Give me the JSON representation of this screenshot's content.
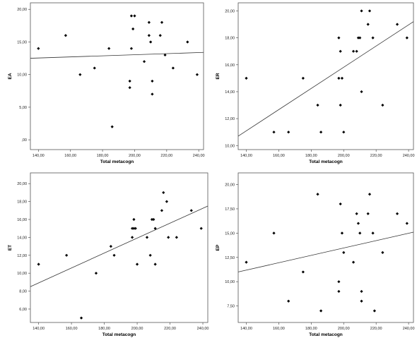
{
  "chart_data": [
    {
      "type": "scatter",
      "xlabel": "Total metacogn",
      "ylabel": "EA",
      "xlim": [
        135,
        243
      ],
      "ylim": [
        -1.5,
        21
      ],
      "xticks": [
        "140,00",
        "160,00",
        "180,00",
        "200,00",
        "220,00",
        "240,00"
      ],
      "xtick_values": [
        140,
        160,
        180,
        200,
        220,
        240
      ],
      "yticks": [
        ",00",
        "5,00",
        "10,00",
        "15,00",
        "20,00"
      ],
      "ytick_values": [
        0,
        5,
        10,
        15,
        20
      ],
      "grid": false,
      "fit_line": {
        "x": [
          135,
          243
        ],
        "y": [
          12.5,
          13.4
        ]
      },
      "points": [
        {
          "x": 140,
          "y": 14
        },
        {
          "x": 157,
          "y": 16
        },
        {
          "x": 166,
          "y": 10
        },
        {
          "x": 175,
          "y": 11
        },
        {
          "x": 184,
          "y": 14
        },
        {
          "x": 186,
          "y": 2
        },
        {
          "x": 197,
          "y": 9
        },
        {
          "x": 197,
          "y": 8
        },
        {
          "x": 198,
          "y": 14
        },
        {
          "x": 198,
          "y": 19
        },
        {
          "x": 199,
          "y": 17
        },
        {
          "x": 200,
          "y": 19
        },
        {
          "x": 206,
          "y": 12
        },
        {
          "x": 209,
          "y": 18
        },
        {
          "x": 209,
          "y": 16
        },
        {
          "x": 210,
          "y": 15
        },
        {
          "x": 211,
          "y": 9
        },
        {
          "x": 211,
          "y": 7
        },
        {
          "x": 216,
          "y": 16
        },
        {
          "x": 217,
          "y": 18
        },
        {
          "x": 219,
          "y": 13
        },
        {
          "x": 224,
          "y": 11
        },
        {
          "x": 233,
          "y": 15
        },
        {
          "x": 239,
          "y": 10
        }
      ]
    },
    {
      "type": "scatter",
      "xlabel": "Total metacogn",
      "ylabel": "ER",
      "xlim": [
        135,
        243
      ],
      "ylim": [
        9.7,
        20.6
      ],
      "xticks": [
        "140,00",
        "160,00",
        "180,00",
        "200,00",
        "220,00",
        "240,00"
      ],
      "xtick_values": [
        140,
        160,
        180,
        200,
        220,
        240
      ],
      "yticks": [
        "10,00",
        "12,00",
        "14,00",
        "16,00",
        "18,00",
        "20,00"
      ],
      "ytick_values": [
        10,
        12,
        14,
        16,
        18,
        20
      ],
      "grid": false,
      "fit_line": {
        "x": [
          135,
          243
        ],
        "y": [
          10.7,
          19.2
        ]
      },
      "points": [
        {
          "x": 140,
          "y": 15
        },
        {
          "x": 157,
          "y": 11
        },
        {
          "x": 166,
          "y": 11
        },
        {
          "x": 175,
          "y": 15
        },
        {
          "x": 184,
          "y": 13
        },
        {
          "x": 186,
          "y": 11
        },
        {
          "x": 197,
          "y": 18
        },
        {
          "x": 197,
          "y": 15
        },
        {
          "x": 198,
          "y": 17
        },
        {
          "x": 198,
          "y": 13
        },
        {
          "x": 199,
          "y": 15
        },
        {
          "x": 200,
          "y": 11
        },
        {
          "x": 206,
          "y": 17
        },
        {
          "x": 208,
          "y": 17
        },
        {
          "x": 209,
          "y": 18
        },
        {
          "x": 210,
          "y": 18
        },
        {
          "x": 211,
          "y": 20
        },
        {
          "x": 211,
          "y": 14
        },
        {
          "x": 215,
          "y": 19
        },
        {
          "x": 216,
          "y": 20
        },
        {
          "x": 218,
          "y": 18
        },
        {
          "x": 224,
          "y": 13
        },
        {
          "x": 233,
          "y": 19
        },
        {
          "x": 239,
          "y": 18
        }
      ]
    },
    {
      "type": "scatter",
      "xlabel": "Total metacogn",
      "ylabel": "ET",
      "xlim": [
        135,
        243
      ],
      "ylim": [
        4.5,
        21.2
      ],
      "xticks": [
        "140,00",
        "160,00",
        "180,00",
        "200,00",
        "220,00",
        "240,00"
      ],
      "xtick_values": [
        140,
        160,
        180,
        200,
        220,
        240
      ],
      "yticks": [
        "6,00",
        "8,00",
        "10,00",
        "12,00",
        "14,00",
        "16,00",
        "18,00",
        "20,00"
      ],
      "ytick_values": [
        6,
        8,
        10,
        12,
        14,
        16,
        18,
        20
      ],
      "grid": false,
      "fit_line": {
        "x": [
          135,
          243
        ],
        "y": [
          8.5,
          17.5
        ]
      },
      "points": [
        {
          "x": 140,
          "y": 11
        },
        {
          "x": 157,
          "y": 12
        },
        {
          "x": 166,
          "y": 5
        },
        {
          "x": 175,
          "y": 10
        },
        {
          "x": 184,
          "y": 13
        },
        {
          "x": 186,
          "y": 12
        },
        {
          "x": 197,
          "y": 14
        },
        {
          "x": 197,
          "y": 15
        },
        {
          "x": 198,
          "y": 16
        },
        {
          "x": 198,
          "y": 15
        },
        {
          "x": 199,
          "y": 15
        },
        {
          "x": 200,
          "y": 11
        },
        {
          "x": 206,
          "y": 14
        },
        {
          "x": 208,
          "y": 12
        },
        {
          "x": 209,
          "y": 16
        },
        {
          "x": 210,
          "y": 16
        },
        {
          "x": 211,
          "y": 15
        },
        {
          "x": 211,
          "y": 11
        },
        {
          "x": 215,
          "y": 17
        },
        {
          "x": 216,
          "y": 19
        },
        {
          "x": 218,
          "y": 18
        },
        {
          "x": 219,
          "y": 14
        },
        {
          "x": 224,
          "y": 14
        },
        {
          "x": 233,
          "y": 17
        },
        {
          "x": 239,
          "y": 15
        }
      ]
    },
    {
      "type": "scatter",
      "xlabel": "Total metacogn",
      "ylabel": "EP",
      "xlim": [
        135,
        243
      ],
      "ylim": [
        5.8,
        21.2
      ],
      "xticks": [
        "140,00",
        "160,00",
        "180,00",
        "200,00",
        "220,00",
        "240,00"
      ],
      "xtick_values": [
        140,
        160,
        180,
        200,
        220,
        240
      ],
      "yticks": [
        "7,50",
        "10,00",
        "12,50",
        "15,00",
        "17,50",
        "20,00"
      ],
      "ytick_values": [
        7.5,
        10,
        12.5,
        15,
        17.5,
        20
      ],
      "grid": false,
      "fit_line": {
        "x": [
          135,
          243
        ],
        "y": [
          11,
          15.1
        ]
      },
      "points": [
        {
          "x": 140,
          "y": 12
        },
        {
          "x": 157,
          "y": 15
        },
        {
          "x": 166,
          "y": 8
        },
        {
          "x": 175,
          "y": 11
        },
        {
          "x": 184,
          "y": 19
        },
        {
          "x": 186,
          "y": 7
        },
        {
          "x": 197,
          "y": 10
        },
        {
          "x": 197,
          "y": 9
        },
        {
          "x": 198,
          "y": 18
        },
        {
          "x": 199,
          "y": 15
        },
        {
          "x": 200,
          "y": 13
        },
        {
          "x": 206,
          "y": 12
        },
        {
          "x": 208,
          "y": 17
        },
        {
          "x": 209,
          "y": 16
        },
        {
          "x": 210,
          "y": 15
        },
        {
          "x": 211,
          "y": 9
        },
        {
          "x": 211,
          "y": 8
        },
        {
          "x": 215,
          "y": 17
        },
        {
          "x": 216,
          "y": 19
        },
        {
          "x": 218,
          "y": 15
        },
        {
          "x": 219,
          "y": 7
        },
        {
          "x": 224,
          "y": 13
        },
        {
          "x": 233,
          "y": 17
        },
        {
          "x": 239,
          "y": 16
        }
      ]
    }
  ]
}
